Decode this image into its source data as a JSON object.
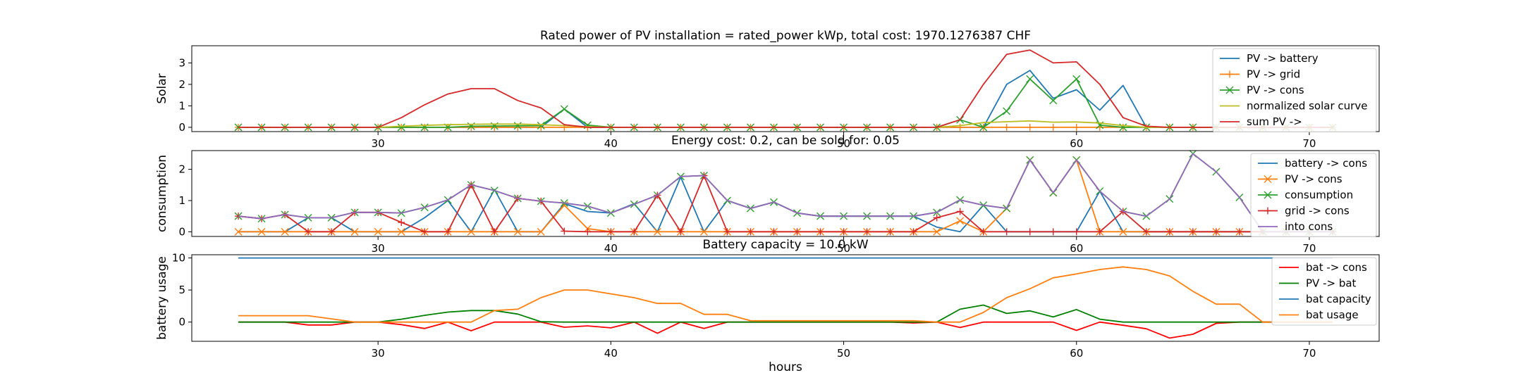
{
  "chart_data": [
    {
      "type": "line",
      "title": "Rated power of PV installation = rated_power kWp, total cost: 1970.1276387 CHF",
      "xlabel": "",
      "ylabel": "Solar",
      "xlim": [
        22,
        73
      ],
      "ylim": [
        -0.2,
        3.8
      ],
      "xticks": [
        30,
        40,
        50,
        60,
        70
      ],
      "yticks": [
        0,
        1,
        2,
        3
      ],
      "x_start": 24,
      "legend_position": "top-right",
      "grid": false,
      "series": [
        {
          "name": "PV -> battery",
          "color": "#1f77b4",
          "marker": "none",
          "values": [
            0,
            0,
            0,
            0,
            0,
            0,
            0,
            0,
            0,
            0,
            0,
            0,
            0,
            0,
            0.85,
            0,
            0,
            0,
            0,
            0,
            0,
            0,
            0,
            0,
            0,
            0,
            0,
            0,
            0,
            0,
            0,
            0,
            0,
            2.0,
            2.65,
            1.35,
            1.75,
            0.8,
            1.95,
            0,
            0,
            0,
            0,
            0,
            0,
            0,
            0,
            0
          ]
        },
        {
          "name": "PV -> grid",
          "color": "#ff7f0e",
          "marker": "plus",
          "values": [
            0,
            0,
            0,
            0,
            0,
            0,
            0,
            0,
            0,
            0,
            0,
            0,
            0,
            0,
            0,
            0,
            0,
            0,
            0,
            0,
            0,
            0,
            0,
            0,
            0,
            0,
            0,
            0,
            0,
            0,
            0,
            0,
            0,
            0,
            0,
            0,
            0,
            0,
            0,
            0,
            0,
            0,
            0,
            0,
            0,
            0,
            0,
            0
          ]
        },
        {
          "name": "PV -> cons",
          "color": "#2ca02c",
          "marker": "x",
          "values": [
            0,
            0,
            0,
            0,
            0,
            0,
            0,
            0,
            0,
            0,
            0.05,
            0.06,
            0.07,
            0.08,
            0.85,
            0.1,
            0,
            0,
            0,
            0,
            0,
            0,
            0,
            0,
            0,
            0,
            0,
            0,
            0,
            0,
            0,
            0.35,
            0,
            0.75,
            2.25,
            1.25,
            2.25,
            0.1,
            0,
            0,
            0,
            0,
            0,
            0,
            0,
            0,
            0,
            0
          ]
        },
        {
          "name": "normalized solar curve",
          "color": "#bcbd22",
          "marker": "none",
          "values": [
            0,
            0,
            0,
            0,
            0,
            0,
            0,
            0.05,
            0.09,
            0.12,
            0.14,
            0.15,
            0.15,
            0.12,
            0.08,
            0.03,
            0,
            0,
            0,
            0,
            0,
            0,
            0,
            0,
            0,
            0,
            0,
            0,
            0,
            0,
            0,
            0.08,
            0.22,
            0.26,
            0.3,
            0.24,
            0.25,
            0.2,
            0.08,
            0,
            0,
            0,
            0,
            0,
            0,
            0,
            0,
            0
          ]
        },
        {
          "name": "sum PV ->",
          "color": "#d62728",
          "marker": "none",
          "values": [
            0,
            0,
            0,
            0,
            0,
            0,
            0,
            0.45,
            1.05,
            1.55,
            1.8,
            1.8,
            1.25,
            0.9,
            0.12,
            0,
            0,
            0,
            0,
            0,
            0,
            0,
            0,
            0,
            0,
            0,
            0,
            0,
            0,
            0,
            0,
            0.35,
            2.0,
            3.4,
            3.6,
            3.0,
            3.05,
            2.0,
            0.45,
            0.05,
            0,
            0,
            0,
            0,
            0,
            0,
            0,
            0
          ]
        }
      ]
    },
    {
      "type": "line",
      "title": "Energy cost: 0.2, can be sold for: 0.05",
      "xlabel": "",
      "ylabel": "consumption",
      "xlim": [
        22,
        73
      ],
      "ylim": [
        -0.15,
        2.6
      ],
      "xticks": [
        30,
        40,
        50,
        60,
        70
      ],
      "yticks": [
        0,
        1,
        2
      ],
      "x_start": 24,
      "legend_position": "top-right",
      "grid": false,
      "series": [
        {
          "name": "battery -> cons",
          "color": "#1f77b4",
          "marker": "none",
          "values": [
            0,
            0,
            0,
            0.45,
            0.45,
            0,
            0,
            0,
            0.45,
            1.0,
            0,
            1.35,
            0,
            0,
            0.9,
            0.65,
            0.6,
            0.9,
            0,
            1.75,
            0,
            1.0,
            0.75,
            0.95,
            0.6,
            0.5,
            0.5,
            0.5,
            0.5,
            0.5,
            0.15,
            0,
            0.85,
            0,
            0,
            0,
            0,
            1.3,
            0,
            0,
            0,
            0,
            0,
            0,
            0,
            0,
            0,
            0
          ]
        },
        {
          "name": "PV -> cons",
          "color": "#ff7f0e",
          "marker": "x",
          "values": [
            0,
            0,
            0,
            0,
            0,
            0,
            0,
            0,
            0,
            0,
            0,
            0,
            0,
            0,
            0.85,
            0.1,
            0,
            0,
            0,
            0,
            0,
            0,
            0,
            0,
            0,
            0,
            0,
            0,
            0,
            0,
            0,
            0.35,
            0,
            0.75,
            2.3,
            1.25,
            2.3,
            0,
            0,
            0,
            0,
            0,
            0,
            0,
            0,
            0,
            0,
            0
          ]
        },
        {
          "name": "consumption",
          "color": "#2ca02c",
          "marker": "x",
          "values": [
            0.5,
            0.42,
            0.55,
            0.45,
            0.45,
            0.62,
            0.62,
            0.6,
            0.78,
            1.02,
            1.5,
            1.32,
            1.07,
            0.98,
            0.92,
            0.82,
            0.6,
            0.88,
            1.17,
            1.77,
            1.8,
            1.0,
            0.75,
            0.95,
            0.6,
            0.5,
            0.5,
            0.5,
            0.5,
            0.5,
            0.62,
            1.02,
            0.85,
            0.75,
            2.3,
            1.25,
            2.3,
            1.3,
            0.65,
            0.5,
            1.05,
            2.5,
            1.92,
            1.1,
            0,
            0,
            0,
            0
          ]
        },
        {
          "name": "grid -> cons",
          "color": "#d62728",
          "marker": "plus",
          "values": [
            0.5,
            0.42,
            0.55,
            0,
            0,
            0.62,
            0.62,
            0.3,
            0,
            0,
            1.5,
            0,
            1.07,
            0.98,
            0.02,
            0,
            0,
            0,
            1.17,
            0,
            1.8,
            0,
            0,
            0,
            0,
            0,
            0,
            0,
            0,
            0,
            0.45,
            0.65,
            0,
            0,
            0,
            0,
            0,
            0,
            0.65,
            0,
            0,
            0,
            0,
            0,
            0,
            0,
            0,
            0
          ]
        },
        {
          "name": "into cons",
          "color": "#9467bd",
          "marker": "none",
          "values": [
            0.5,
            0.42,
            0.55,
            0.45,
            0.45,
            0.62,
            0.62,
            0.6,
            0.78,
            1.02,
            1.5,
            1.32,
            1.07,
            0.98,
            0.92,
            0.82,
            0.6,
            0.88,
            1.17,
            1.77,
            1.8,
            1.0,
            0.75,
            0.95,
            0.6,
            0.5,
            0.5,
            0.5,
            0.5,
            0.5,
            0.62,
            1.02,
            0.85,
            0.75,
            2.3,
            1.25,
            2.3,
            1.3,
            0.65,
            0.5,
            1.05,
            2.5,
            1.92,
            1.1,
            0,
            0,
            0,
            0
          ]
        }
      ]
    },
    {
      "type": "line",
      "title": "Battery capacity = 10.0 kW",
      "xlabel": "hours",
      "ylabel": "battery usage",
      "xlim": [
        22,
        73
      ],
      "ylim": [
        -3,
        10.5
      ],
      "xticks": [
        30,
        40,
        50,
        60,
        70
      ],
      "yticks": [
        0,
        5,
        10
      ],
      "x_start": 24,
      "legend_position": "top-right",
      "grid": false,
      "series": [
        {
          "name": "bat -> cons",
          "color": "#ff0000",
          "marker": "none",
          "values": [
            0,
            0,
            0,
            -0.45,
            -0.45,
            0,
            0,
            -0.4,
            -1.0,
            0,
            -1.35,
            0,
            0,
            0,
            -0.8,
            -0.6,
            -0.9,
            0,
            -1.75,
            0,
            -1.0,
            0,
            0,
            0,
            0,
            0,
            0,
            0,
            0,
            -0.15,
            0,
            -0.85,
            0,
            0,
            0,
            0,
            -1.3,
            0,
            -0.5,
            -1.05,
            -2.5,
            -1.9,
            -0.2,
            0,
            0,
            0,
            0,
            0
          ]
        },
        {
          "name": "PV -> bat",
          "color": "#008000",
          "marker": "none",
          "values": [
            0,
            0,
            0,
            0,
            0,
            0,
            0,
            0.45,
            1.05,
            1.55,
            1.8,
            1.8,
            1.25,
            0.05,
            0,
            0,
            0,
            0,
            0,
            0,
            0,
            0,
            0,
            0,
            0,
            0,
            0,
            0,
            0,
            0,
            0,
            2.0,
            2.65,
            1.35,
            1.75,
            0.8,
            1.95,
            0.45,
            0,
            0,
            0,
            0,
            0,
            0,
            0,
            0,
            0,
            0
          ]
        },
        {
          "name": "bat capacity",
          "color": "#1f77b4",
          "marker": "none",
          "values": [
            10,
            10,
            10,
            10,
            10,
            10,
            10,
            10,
            10,
            10,
            10,
            10,
            10,
            10,
            10,
            10,
            10,
            10,
            10,
            10,
            10,
            10,
            10,
            10,
            10,
            10,
            10,
            10,
            10,
            10,
            10,
            10,
            10,
            10,
            10,
            10,
            10,
            10,
            10,
            10,
            10,
            10,
            10,
            10,
            10,
            10,
            10,
            10
          ]
        },
        {
          "name": "bat usage",
          "color": "#ff7f0e",
          "marker": "none",
          "values": [
            1.0,
            1.0,
            1.0,
            1.0,
            0.5,
            0,
            0,
            0,
            0,
            0,
            0,
            1.8,
            2.0,
            3.8,
            5.0,
            5.0,
            4.4,
            3.8,
            2.9,
            2.9,
            1.2,
            1.2,
            0.2,
            0.2,
            0.2,
            0.2,
            0.2,
            0.2,
            0.2,
            0.2,
            0,
            0,
            1.5,
            3.8,
            5.2,
            6.9,
            7.5,
            8.2,
            8.6,
            8.2,
            7.2,
            4.8,
            2.8,
            2.8,
            0,
            0,
            0,
            0
          ]
        }
      ]
    }
  ]
}
